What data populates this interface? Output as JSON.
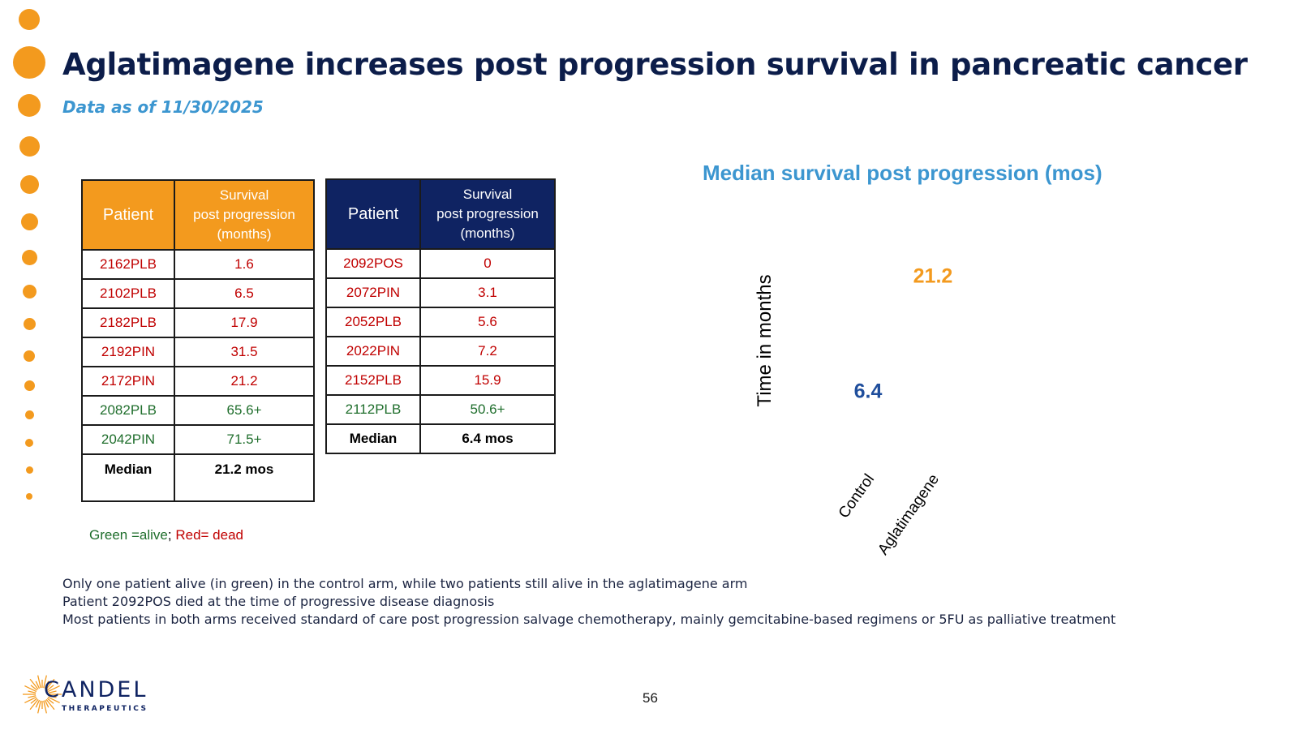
{
  "slide": {
    "title": "Aglatimagene increases post progression survival in pancreatic cancer",
    "subtitle": "Data as of 11/30/2025",
    "page_number": "56"
  },
  "left_table": {
    "header": [
      "Patient",
      "Survival\npost progression\n(months)"
    ],
    "rows": [
      {
        "patient": "2162PLB",
        "value": "1.6",
        "status": "dead"
      },
      {
        "patient": "2102PLB",
        "value": "6.5",
        "status": "dead"
      },
      {
        "patient": "2182PLB",
        "value": "17.9",
        "status": "dead"
      },
      {
        "patient": "2192PIN",
        "value": "31.5",
        "status": "dead"
      },
      {
        "patient": "2172PIN",
        "value": "21.2",
        "status": "dead"
      },
      {
        "patient": "2082PLB",
        "value": "65.6+",
        "status": "alive"
      },
      {
        "patient": "2042PIN",
        "value": "71.5+",
        "status": "alive"
      }
    ],
    "median_label": "Median",
    "median_value": "21.2 mos",
    "header_color": "#f39a1e"
  },
  "right_table": {
    "header": [
      "Patient",
      "Survival\npost progression\n(months)"
    ],
    "rows": [
      {
        "patient": "2092POS",
        "value": "0",
        "status": "dead"
      },
      {
        "patient": "2072PIN",
        "value": "3.1",
        "status": "dead"
      },
      {
        "patient": "2052PLB",
        "value": "5.6",
        "status": "dead"
      },
      {
        "patient": "2022PIN",
        "value": "7.2",
        "status": "dead"
      },
      {
        "patient": "2152PLB",
        "value": "15.9",
        "status": "dead"
      },
      {
        "patient": "2112PLB",
        "value": "50.6+",
        "status": "alive"
      }
    ],
    "median_label": "Median",
    "median_value": "6.4  mos",
    "header_color": "#0f2362"
  },
  "legend": {
    "alive_text": "Green =alive",
    "separator": ";",
    "dead_text": " Red= dead",
    "alive_color": "#1f6e2c",
    "dead_color": "#c00000"
  },
  "chart_data": {
    "type": "bar",
    "title": "Median survival post progression (mos)",
    "ylabel": "Time in months",
    "categories": [
      "Control",
      "Aglatimagene"
    ],
    "values": [
      6.4,
      21.2
    ],
    "value_labels": [
      "6.4",
      "21.2"
    ],
    "colors": [
      "#1f4e9c",
      "#f39a1e"
    ],
    "ylim": [
      0,
      25
    ]
  },
  "notes": [
    "Only one patient alive (in green) in the control arm, while two patients still alive in the aglatimagene arm",
    "Patient 2092POS died at the time of progressive disease diagnosis",
    "Most patients in both arms received standard of care post progression salvage chemotherapy, mainly gemcitabine-based regimens or 5FU as palliative treatment"
  ],
  "logo": {
    "name": "CANDEL",
    "tagline": "THERAPEUTICS",
    "icon": "sunburst-logo-icon",
    "color": "#0f2362",
    "accent": "#f39a1e"
  }
}
